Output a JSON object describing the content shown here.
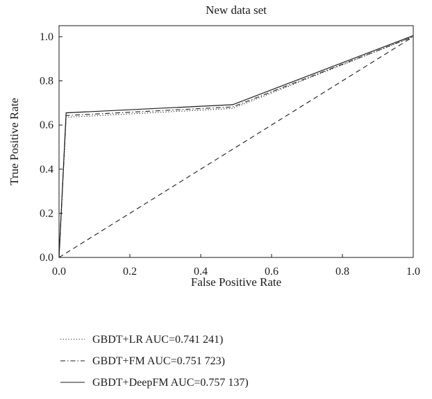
{
  "chart_data": {
    "type": "line",
    "title": "New data set",
    "xlabel": "False Positive Rate",
    "ylabel": "True Positive Rate",
    "xlim": [
      0,
      1
    ],
    "ylim": [
      0,
      1.05
    ],
    "x_ticks": [
      0.0,
      0.2,
      0.4,
      0.6,
      0.8,
      1.0
    ],
    "y_ticks": [
      0.0,
      0.2,
      0.4,
      0.6,
      0.8,
      1.0
    ],
    "x_tick_labels": [
      "0.0",
      "0.2",
      "0.4",
      "0.6",
      "0.8",
      "1.0"
    ],
    "y_tick_labels": [
      "0.0",
      "0.2",
      "0.4",
      "0.6",
      "0.8",
      "1.0"
    ],
    "grid": false,
    "legend_position": "below",
    "series": [
      {
        "name": "GBDT+LR AUC=0.741 241)",
        "style": "dotted",
        "color": "#1a1a1a",
        "x": [
          0.0,
          0.02,
          0.49,
          1.0
        ],
        "y": [
          0.0,
          0.635,
          0.675,
          1.0
        ]
      },
      {
        "name": "GBDT+FM AUC=0.751 723)",
        "style": "dashdot",
        "color": "#1a1a1a",
        "x": [
          0.0,
          0.02,
          0.49,
          1.0
        ],
        "y": [
          0.0,
          0.643,
          0.682,
          1.0
        ]
      },
      {
        "name": "GBDT+DeepFM AUC=0.757 137)",
        "style": "solid",
        "color": "#1a1a1a",
        "x": [
          0.0,
          0.02,
          0.49,
          1.0
        ],
        "y": [
          0.0,
          0.655,
          0.692,
          1.005
        ]
      },
      {
        "name": "",
        "style": "dashed",
        "color": "#1a1a1a",
        "x": [
          0.0,
          1.0
        ],
        "y": [
          0.0,
          1.0
        ]
      }
    ]
  }
}
